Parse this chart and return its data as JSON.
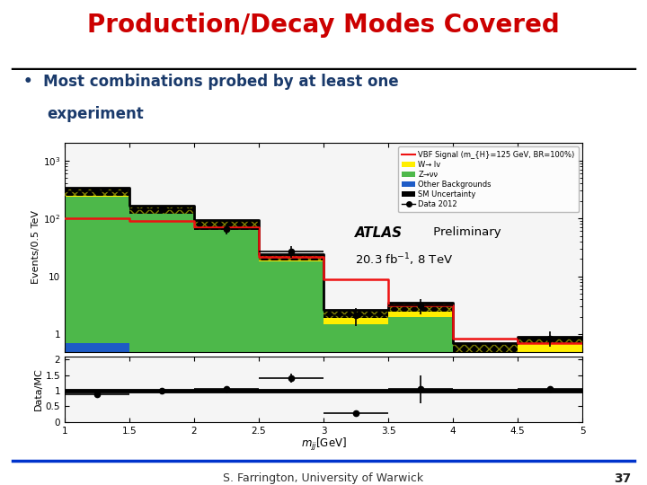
{
  "title": "Production/Decay Modes Covered",
  "title_color": "#cc0000",
  "bullet_line1": "Most combinations probed by at least one",
  "bullet_line2": "experiment",
  "bullet_color": "#1a3a6b",
  "footer_text": "S. Farrington, University of Warwick",
  "slide_number": "37",
  "bg_color": "#ffffff",
  "header_line_color": "#000000",
  "footer_line_color": "#0033cc",
  "bin_edges": [
    1.0,
    1.5,
    2.0,
    2.5,
    3.0,
    3.5,
    4.0,
    4.5,
    5.0
  ],
  "blue_vals": [
    0.7,
    0.0,
    0.0,
    0.0,
    0.0,
    0.0,
    0.0,
    0.0
  ],
  "green_vals": [
    240,
    120,
    65,
    18,
    1.5,
    2.0,
    0.35,
    0.5
  ],
  "yellow_vals": [
    55,
    25,
    12,
    5,
    0.8,
    1.0,
    0.25,
    0.35
  ],
  "black_band_top": [
    340,
    165,
    95,
    24,
    2.6,
    3.5,
    0.7,
    0.9
  ],
  "signal_vals": [
    100,
    90,
    70,
    22,
    9,
    3.2,
    0.85,
    0.7
  ],
  "data_x": [
    1.25,
    1.75,
    2.25,
    2.75,
    3.25,
    3.75,
    4.75
  ],
  "data_y": [
    290,
    145,
    65,
    27,
    2.1,
    3.1,
    0.85
  ],
  "data_xerr": [
    0.25,
    0.25,
    0.25,
    0.25,
    0.25,
    0.25,
    0.25
  ],
  "data_yerr_lo": [
    40,
    20,
    12,
    6,
    0.7,
    0.9,
    0.25
  ],
  "data_yerr_hi": [
    40,
    20,
    12,
    6,
    0.7,
    0.9,
    0.25
  ],
  "ratio_data_x": [
    1.25,
    1.75,
    2.25,
    2.75,
    3.25,
    3.75,
    4.75
  ],
  "ratio_data_y": [
    0.88,
    1.0,
    1.05,
    1.4,
    0.28,
    1.05,
    1.05
  ],
  "ratio_data_xerr": [
    0.25,
    0.25,
    0.25,
    0.25,
    0.25,
    0.25,
    0.25
  ],
  "ratio_data_yerr": [
    0.1,
    0.08,
    0.08,
    0.14,
    0.08,
    0.45,
    0.06
  ],
  "color_blue": "#1e5bc6",
  "color_green": "#4db84a",
  "color_yellow": "#ffee00",
  "color_black": "#000000",
  "color_red": "#ee1111",
  "legend_entries": [
    "VBF Signal (m_{H}=125 GeV, BR=100%)",
    "W→ lv",
    "Z→νν",
    "Other Backgrounds",
    "SM Uncertainty",
    "Data 2012"
  ],
  "ylabel_main": "Events/0.5 TeV",
  "ylabel_ratio": "Data/MC",
  "atlas_text": "ATLAS",
  "prelim_text": " Preliminary",
  "lumi_text": "20.3 fb$^{-1}$, 8 TeV",
  "ylim_main": [
    0.5,
    2000
  ],
  "ylim_ratio": [
    0,
    2.1
  ],
  "xlim": [
    1.0,
    5.0
  ]
}
